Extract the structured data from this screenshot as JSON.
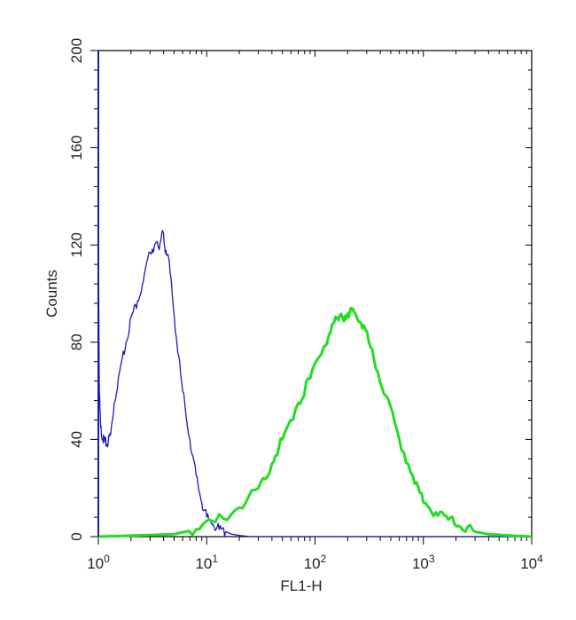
{
  "chart_data": {
    "type": "line",
    "xlabel": "FL1-H",
    "ylabel": "Counts",
    "xscale": "log",
    "xlim": [
      1,
      10000
    ],
    "ylim": [
      0,
      200
    ],
    "grid": false,
    "x_ticks": [
      {
        "value": 1,
        "base": "10",
        "exp": "0"
      },
      {
        "value": 10,
        "base": "10",
        "exp": "1"
      },
      {
        "value": 100,
        "base": "10",
        "exp": "2"
      },
      {
        "value": 1000,
        "base": "10",
        "exp": "3"
      },
      {
        "value": 10000,
        "base": "10",
        "exp": "4"
      }
    ],
    "y_ticks": [
      "0",
      "40",
      "80",
      "120",
      "160",
      "200"
    ],
    "series": [
      {
        "color": "#1a1ab8",
        "x": [
          1.0,
          1.02,
          1.05,
          1.1,
          1.15,
          1.2,
          1.3,
          1.4,
          1.6,
          1.8,
          2.0,
          2.3,
          2.6,
          3.0,
          3.3,
          3.6,
          3.9,
          4.1,
          4.4,
          4.8,
          5.3,
          6.0,
          7.0,
          8.0,
          9.0,
          10.0,
          11.5,
          13.0,
          15.0,
          17.0,
          20.0,
          25.0,
          10000
        ],
        "y": [
          125,
          60,
          45,
          40,
          39,
          38,
          42,
          55,
          70,
          80,
          90,
          97,
          105,
          117,
          120,
          119,
          126,
          119,
          116,
          100,
          80,
          60,
          40,
          25,
          14,
          8,
          5,
          3,
          2,
          1,
          0.5,
          0,
          0
        ]
      },
      {
        "color": "#22dd22",
        "x": [
          1.0,
          5.0,
          8.0,
          12.0,
          20.0,
          30.0,
          40.0,
          50.0,
          70.0,
          90.0,
          120.0,
          150.0,
          180.0,
          210.0,
          240.0,
          280.0,
          350.0,
          450.0,
          600.0,
          800.0,
          1000.0,
          1300.0,
          1700.0,
          2200.0,
          3000.0,
          4000.0,
          6000.0,
          10000.0
        ],
        "y": [
          0,
          1,
          3,
          6,
          12,
          20,
          30,
          40,
          55,
          65,
          78,
          88,
          90,
          93,
          91,
          87,
          73,
          58,
          40,
          25,
          14,
          10,
          7,
          4,
          2,
          1,
          0.5,
          0
        ]
      }
    ]
  }
}
